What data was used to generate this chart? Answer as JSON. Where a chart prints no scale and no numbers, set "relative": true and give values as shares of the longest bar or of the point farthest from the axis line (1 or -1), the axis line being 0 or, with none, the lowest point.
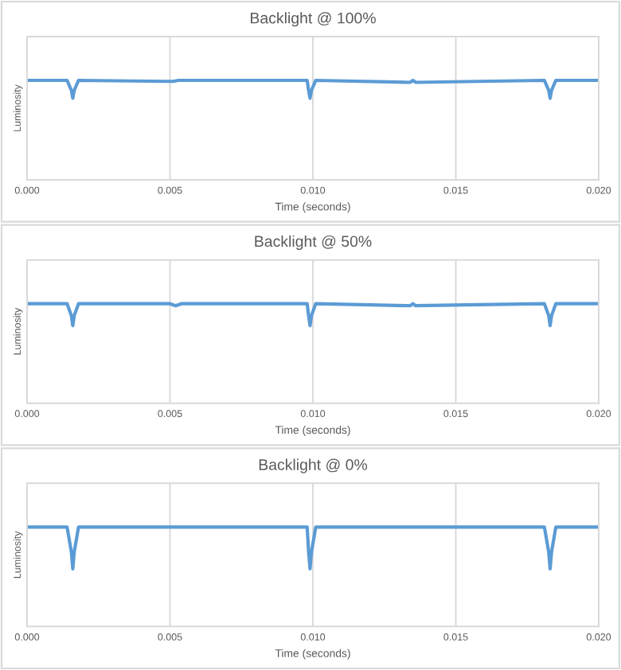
{
  "chart_data": [
    {
      "type": "line",
      "title": "Backlight @ 100%",
      "xlabel": "Time (seconds)",
      "ylabel": "Luminosity",
      "relative": true,
      "grid": "x",
      "marker": "none",
      "line_style": "solid",
      "xlim": [
        0,
        0.02
      ],
      "xticks": [
        {
          "value": 0,
          "label": "0.000"
        },
        {
          "value": 0.005,
          "label": "0.005"
        },
        {
          "value": 0.01,
          "label": "0.010"
        },
        {
          "value": 0.015,
          "label": "0.015"
        },
        {
          "value": 0.02,
          "label": "0.020"
        }
      ],
      "series": [
        {
          "color": "#5b9bd5",
          "x": [
            0,
            0.0014,
            0.00155,
            0.0016,
            0.00165,
            0.0018,
            0.0049,
            0.0051,
            0.0053,
            0.0098,
            0.00985,
            0.0099,
            0.00995,
            0.0101,
            0.0134,
            0.0135,
            0.0136,
            0.0181,
            0.01825,
            0.0183,
            0.01835,
            0.0185,
            0.02
          ],
          "values": [
            1,
            1,
            0.9,
            0.82,
            0.9,
            1,
            0.99,
            0.99,
            1,
            1,
            0.9,
            0.82,
            0.9,
            1,
            0.98,
            1,
            0.98,
            1,
            0.9,
            0.82,
            0.9,
            1,
            1
          ]
        }
      ]
    },
    {
      "type": "line",
      "title": "Backlight @ 50%",
      "xlabel": "Time (seconds)",
      "ylabel": "Luminosity",
      "relative": true,
      "grid": "x",
      "marker": "none",
      "line_style": "solid",
      "xlim": [
        0,
        0.02
      ],
      "xticks": [
        {
          "value": 0,
          "label": "0.000"
        },
        {
          "value": 0.005,
          "label": "0.005"
        },
        {
          "value": 0.01,
          "label": "0.010"
        },
        {
          "value": 0.015,
          "label": "0.015"
        },
        {
          "value": 0.02,
          "label": "0.020"
        }
      ],
      "series": [
        {
          "color": "#5b9bd5",
          "x": [
            0,
            0.0014,
            0.00155,
            0.0016,
            0.00165,
            0.0018,
            0.005,
            0.0052,
            0.0054,
            0.0098,
            0.00985,
            0.0099,
            0.00995,
            0.0101,
            0.0134,
            0.0135,
            0.0136,
            0.0181,
            0.01825,
            0.0183,
            0.01835,
            0.0185,
            0.02
          ],
          "values": [
            1,
            1,
            0.88,
            0.78,
            0.88,
            1,
            1,
            0.98,
            1,
            1,
            0.88,
            0.78,
            0.88,
            1,
            0.98,
            1,
            0.98,
            1,
            0.88,
            0.78,
            0.88,
            1,
            1
          ]
        }
      ]
    },
    {
      "type": "line",
      "title": "Backlight @ 0%",
      "xlabel": "Time (seconds)",
      "ylabel": "Luminosity",
      "relative": true,
      "grid": "x",
      "marker": "none",
      "line_style": "solid",
      "xlim": [
        0,
        0.02
      ],
      "xticks": [
        {
          "value": 0,
          "label": "0.000"
        },
        {
          "value": 0.005,
          "label": "0.005"
        },
        {
          "value": 0.01,
          "label": "0.010"
        },
        {
          "value": 0.015,
          "label": "0.015"
        },
        {
          "value": 0.02,
          "label": "0.020"
        }
      ],
      "series": [
        {
          "color": "#5b9bd5",
          "x": [
            0,
            0.0014,
            0.00155,
            0.0016,
            0.00165,
            0.0018,
            0.0098,
            0.00985,
            0.0099,
            0.00995,
            0.0101,
            0.0181,
            0.01825,
            0.0183,
            0.01835,
            0.0185,
            0.02
          ],
          "values": [
            1,
            1,
            0.75,
            0.58,
            0.75,
            1,
            1,
            0.75,
            0.58,
            0.75,
            1,
            1,
            0.75,
            0.58,
            0.75,
            1,
            1
          ]
        }
      ]
    }
  ]
}
